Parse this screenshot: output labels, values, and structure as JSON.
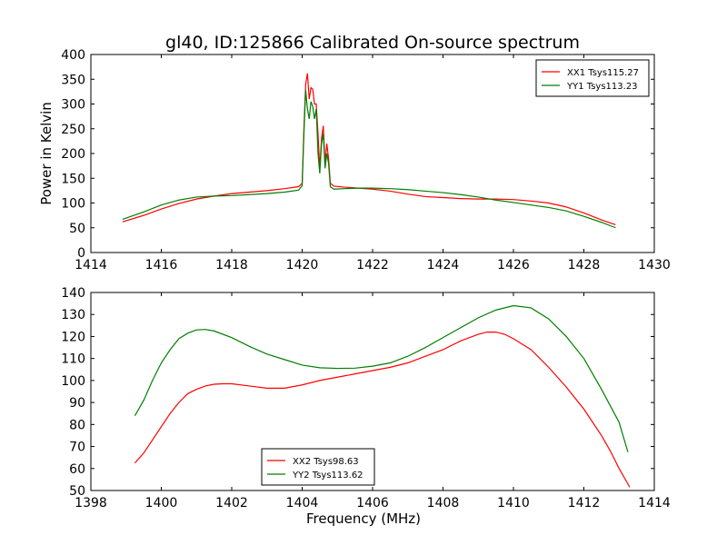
{
  "title": "gl40, ID:125866 Calibrated On-source spectrum",
  "colors": {
    "red": "#ff0000",
    "green": "#007f00"
  },
  "chart_data": [
    {
      "type": "line",
      "ylabel": "Power in Kelvin",
      "xlabel": "",
      "xlim": [
        1414,
        1430
      ],
      "ylim": [
        0,
        400
      ],
      "xticks": [
        1414,
        1416,
        1418,
        1420,
        1422,
        1424,
        1426,
        1428,
        1430
      ],
      "yticks": [
        0,
        50,
        100,
        150,
        200,
        250,
        300,
        350,
        400
      ],
      "legend_position": "top-right",
      "series": [
        {
          "name": "XX1 Tsys115.27",
          "color": "#ff0000",
          "points": [
            [
              1414.9,
              62
            ],
            [
              1415.5,
              75
            ],
            [
              1416,
              88
            ],
            [
              1416.5,
              99
            ],
            [
              1417,
              108
            ],
            [
              1417.5,
              114
            ],
            [
              1418,
              119
            ],
            [
              1418.5,
              122
            ],
            [
              1419,
              125
            ],
            [
              1419.5,
              129
            ],
            [
              1419.9,
              133
            ],
            [
              1420,
              140
            ],
            [
              1420.05,
              250
            ],
            [
              1420.1,
              340
            ],
            [
              1420.15,
              362
            ],
            [
              1420.2,
              310
            ],
            [
              1420.25,
              333
            ],
            [
              1420.3,
              330
            ],
            [
              1420.35,
              300
            ],
            [
              1420.4,
              300
            ],
            [
              1420.45,
              240
            ],
            [
              1420.5,
              170
            ],
            [
              1420.55,
              230
            ],
            [
              1420.6,
              256
            ],
            [
              1420.65,
              180
            ],
            [
              1420.7,
              220
            ],
            [
              1420.75,
              190
            ],
            [
              1420.8,
              140
            ],
            [
              1420.9,
              134
            ],
            [
              1421.2,
              132
            ],
            [
              1421.6,
              130
            ],
            [
              1422,
              128
            ],
            [
              1422.5,
              124
            ],
            [
              1423,
              118
            ],
            [
              1423.5,
              113
            ],
            [
              1424,
              111
            ],
            [
              1424.5,
              109
            ],
            [
              1425,
              108
            ],
            [
              1425.5,
              108
            ],
            [
              1426,
              107
            ],
            [
              1426.5,
              104
            ],
            [
              1427,
              100
            ],
            [
              1427.5,
              92
            ],
            [
              1428,
              80
            ],
            [
              1428.5,
              66
            ],
            [
              1428.9,
              56
            ]
          ]
        },
        {
          "name": "YY1 Tsys113.23",
          "color": "#007f00",
          "points": [
            [
              1414.9,
              67
            ],
            [
              1415.5,
              82
            ],
            [
              1416,
              96
            ],
            [
              1416.5,
              106
            ],
            [
              1417,
              112
            ],
            [
              1417.5,
              114
            ],
            [
              1418,
              115
            ],
            [
              1418.5,
              117
            ],
            [
              1419,
              119
            ],
            [
              1419.5,
              122
            ],
            [
              1419.9,
              126
            ],
            [
              1420,
              135
            ],
            [
              1420.05,
              240
            ],
            [
              1420.1,
              328
            ],
            [
              1420.15,
              290
            ],
            [
              1420.2,
              270
            ],
            [
              1420.25,
              305
            ],
            [
              1420.3,
              295
            ],
            [
              1420.35,
              270
            ],
            [
              1420.4,
              290
            ],
            [
              1420.45,
              200
            ],
            [
              1420.5,
              160
            ],
            [
              1420.55,
              220
            ],
            [
              1420.6,
              240
            ],
            [
              1420.65,
              170
            ],
            [
              1420.7,
              200
            ],
            [
              1420.75,
              180
            ],
            [
              1420.8,
              133
            ],
            [
              1420.9,
              128
            ],
            [
              1421.2,
              129
            ],
            [
              1421.6,
              130
            ],
            [
              1422,
              130
            ],
            [
              1422.5,
              129
            ],
            [
              1423,
              127
            ],
            [
              1423.5,
              124
            ],
            [
              1424,
              121
            ],
            [
              1424.5,
              117
            ],
            [
              1425,
              112
            ],
            [
              1425.5,
              106
            ],
            [
              1426,
              101
            ],
            [
              1426.5,
              96
            ],
            [
              1427,
              91
            ],
            [
              1427.5,
              84
            ],
            [
              1428,
              73
            ],
            [
              1428.5,
              61
            ],
            [
              1428.9,
              50
            ]
          ]
        }
      ]
    },
    {
      "type": "line",
      "ylabel": "",
      "xlabel": "Frequency (MHz)",
      "xlim": [
        1398,
        1414
      ],
      "ylim": [
        50,
        140
      ],
      "xticks": [
        1398,
        1400,
        1402,
        1404,
        1406,
        1408,
        1410,
        1412,
        1414
      ],
      "yticks": [
        50,
        60,
        70,
        80,
        90,
        100,
        110,
        120,
        130,
        140
      ],
      "legend_position": "bottom-center",
      "series": [
        {
          "name": "XX2 Tsys98.63",
          "color": "#ff0000",
          "points": [
            [
              1399.25,
              62.5
            ],
            [
              1399.5,
              67
            ],
            [
              1399.75,
              73
            ],
            [
              1400,
              79
            ],
            [
              1400.25,
              85
            ],
            [
              1400.5,
              90
            ],
            [
              1400.75,
              94
            ],
            [
              1401,
              96
            ],
            [
              1401.25,
              97.5
            ],
            [
              1401.5,
              98.3
            ],
            [
              1401.75,
              98.5
            ],
            [
              1402,
              98.5
            ],
            [
              1402.5,
              97.5
            ],
            [
              1403,
              96.5
            ],
            [
              1403.5,
              96.5
            ],
            [
              1404,
              98
            ],
            [
              1404.5,
              100
            ],
            [
              1405,
              101.5
            ],
            [
              1405.5,
              103
            ],
            [
              1406,
              104.5
            ],
            [
              1406.5,
              106
            ],
            [
              1407,
              108
            ],
            [
              1407.5,
              111
            ],
            [
              1408,
              114
            ],
            [
              1408.5,
              118
            ],
            [
              1409,
              121
            ],
            [
              1409.25,
              122
            ],
            [
              1409.5,
              122
            ],
            [
              1409.75,
              121
            ],
            [
              1410,
              119
            ],
            [
              1410.5,
              114
            ],
            [
              1411,
              106
            ],
            [
              1411.5,
              97
            ],
            [
              1412,
              87
            ],
            [
              1412.5,
              75
            ],
            [
              1412.75,
              68
            ],
            [
              1413,
              60
            ],
            [
              1413.25,
              53
            ],
            [
              1413.3,
              51.5
            ]
          ]
        },
        {
          "name": "YY2 Tsys113.62",
          "color": "#007f00",
          "points": [
            [
              1399.25,
              84
            ],
            [
              1399.5,
              91
            ],
            [
              1399.75,
              100
            ],
            [
              1400,
              108
            ],
            [
              1400.25,
              114
            ],
            [
              1400.5,
              119
            ],
            [
              1400.75,
              121.5
            ],
            [
              1401,
              123
            ],
            [
              1401.25,
              123.2
            ],
            [
              1401.5,
              122.5
            ],
            [
              1402,
              119.5
            ],
            [
              1402.5,
              115.5
            ],
            [
              1403,
              112
            ],
            [
              1403.5,
              109.5
            ],
            [
              1404,
              107
            ],
            [
              1404.5,
              105.8
            ],
            [
              1405,
              105.5
            ],
            [
              1405.5,
              105.6
            ],
            [
              1406,
              106.5
            ],
            [
              1406.5,
              108
            ],
            [
              1407,
              111
            ],
            [
              1407.5,
              115
            ],
            [
              1408,
              119.5
            ],
            [
              1408.5,
              124
            ],
            [
              1409,
              128.5
            ],
            [
              1409.5,
              132
            ],
            [
              1410,
              134
            ],
            [
              1410.5,
              133
            ],
            [
              1411,
              128
            ],
            [
              1411.5,
              120
            ],
            [
              1412,
              110
            ],
            [
              1412.5,
              96
            ],
            [
              1413,
              81
            ],
            [
              1413.25,
              67.5
            ]
          ]
        }
      ]
    }
  ]
}
